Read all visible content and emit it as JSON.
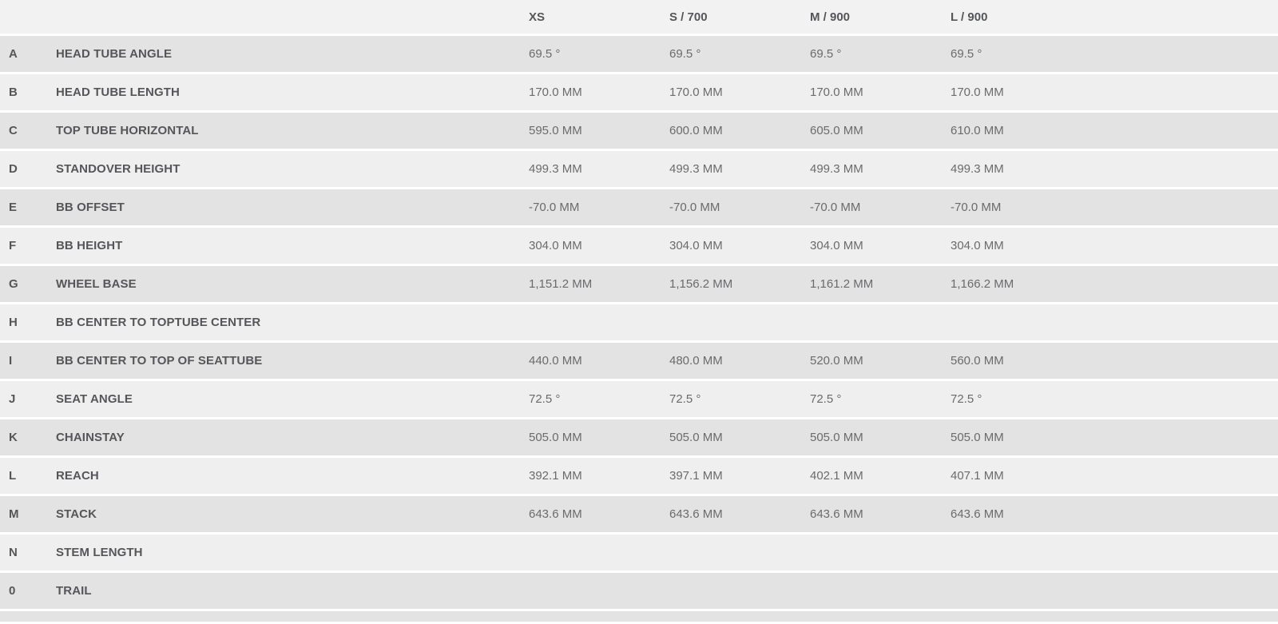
{
  "table": {
    "header": {
      "columns": [
        "XS",
        "S / 700",
        "M / 900",
        "L / 900"
      ]
    },
    "rows": [
      {
        "letter": "A",
        "label": "HEAD TUBE ANGLE",
        "values": [
          "69.5 °",
          "69.5 °",
          "69.5 °",
          "69.5 °"
        ]
      },
      {
        "letter": "B",
        "label": "HEAD TUBE LENGTH",
        "values": [
          "170.0 MM",
          "170.0 MM",
          "170.0 MM",
          "170.0 MM"
        ]
      },
      {
        "letter": "C",
        "label": "TOP TUBE HORIZONTAL",
        "values": [
          "595.0 MM",
          "600.0 MM",
          "605.0 MM",
          "610.0 MM"
        ]
      },
      {
        "letter": "D",
        "label": "STANDOVER HEIGHT",
        "values": [
          "499.3 MM",
          "499.3 MM",
          "499.3 MM",
          "499.3 MM"
        ]
      },
      {
        "letter": "E",
        "label": "BB OFFSET",
        "values": [
          "-70.0 MM",
          "-70.0 MM",
          "-70.0 MM",
          "-70.0 MM"
        ]
      },
      {
        "letter": "F",
        "label": "BB HEIGHT",
        "values": [
          "304.0 MM",
          "304.0 MM",
          "304.0 MM",
          "304.0 MM"
        ]
      },
      {
        "letter": "G",
        "label": "WHEEL BASE",
        "values": [
          "1,151.2 MM",
          "1,156.2 MM",
          "1,161.2 MM",
          "1,166.2 MM"
        ]
      },
      {
        "letter": "H",
        "label": "BB CENTER TO TOPTUBE CENTER",
        "values": [
          "",
          "",
          "",
          ""
        ]
      },
      {
        "letter": "I",
        "label": "BB CENTER TO TOP OF SEATTUBE",
        "values": [
          "440.0 MM",
          "480.0 MM",
          "520.0 MM",
          "560.0 MM"
        ]
      },
      {
        "letter": "J",
        "label": "SEAT ANGLE",
        "values": [
          "72.5 °",
          "72.5 °",
          "72.5 °",
          "72.5 °"
        ]
      },
      {
        "letter": "K",
        "label": "CHAINSTAY",
        "values": [
          "505.0 MM",
          "505.0 MM",
          "505.0 MM",
          "505.0 MM"
        ]
      },
      {
        "letter": "L",
        "label": "REACH",
        "values": [
          "392.1 MM",
          "397.1 MM",
          "402.1 MM",
          "407.1 MM"
        ]
      },
      {
        "letter": "M",
        "label": "STACK",
        "values": [
          "643.6 MM",
          "643.6 MM",
          "643.6 MM",
          "643.6 MM"
        ]
      },
      {
        "letter": "N",
        "label": "STEM LENGTH",
        "values": [
          "",
          "",
          "",
          ""
        ]
      },
      {
        "letter": "0",
        "label": "TRAIL",
        "values": [
          "",
          "",
          "",
          ""
        ]
      }
    ],
    "colors": {
      "row_dark": "#e3e3e3",
      "row_light": "#efefef",
      "header_bg": "#f2f2f2",
      "label_text": "#55565a",
      "value_text": "#6a6b6e",
      "page_bg": "#ffffff"
    }
  }
}
